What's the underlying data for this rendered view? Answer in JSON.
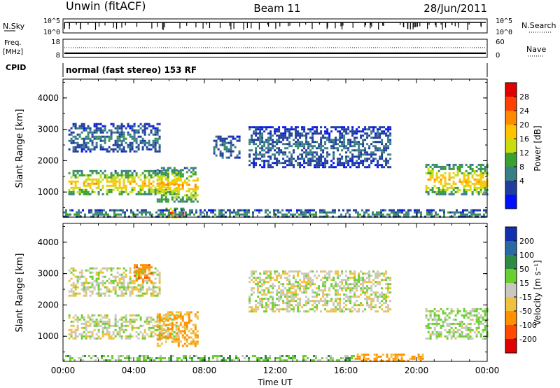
{
  "header": {
    "station": "Unwin (fitACF)",
    "beam": "Beam 11",
    "date": "28/Jun/2011"
  },
  "noise_panel": {
    "left_label": "N.Sky",
    "right_label": "N.Search",
    "left_ticks": [
      "10^5",
      "10^0"
    ],
    "right_ticks": [
      "10^5",
      "10^0"
    ]
  },
  "freq_panel": {
    "left_label_1": "Freq.",
    "left_label_2": "[MHz]",
    "right_label": "Nave",
    "left_ticks": [
      "18",
      "8"
    ],
    "right_ticks": [
      "60",
      "0"
    ]
  },
  "cpid": {
    "label": "CPID",
    "text": "normal (fast stereo) 153 RF"
  },
  "chart_data": [
    {
      "type": "heatmap",
      "title": "",
      "xlabel": "",
      "ylabel": "Slant Range [km]",
      "xlim": [
        0,
        24
      ],
      "ylim": [
        200,
        4600
      ],
      "y_ticks": [
        "1000",
        "2000",
        "3000",
        "4000"
      ],
      "colorbar": {
        "label": "Power [dB]",
        "ticks": [
          "28",
          "24",
          "20",
          "16",
          "12",
          "8",
          "4"
        ],
        "colors": [
          "#e00000",
          "#ff4000",
          "#ff8a00",
          "#ffc400",
          "#c8dc10",
          "#3aa030",
          "#3a7e86",
          "#203c9c",
          "#0010ff"
        ]
      },
      "regions": [
        {
          "t_start": 0.3,
          "t_end": 6.5,
          "range_start": 900,
          "range_end": 1700,
          "level": 18
        },
        {
          "t_start": 0.3,
          "t_end": 5.5,
          "range_start": 2300,
          "range_end": 3200,
          "level": 7
        },
        {
          "t_start": 5.3,
          "t_end": 7.6,
          "range_start": 700,
          "range_end": 1800,
          "level": 18
        },
        {
          "t_start": 5.8,
          "t_end": 6.8,
          "range_start": 200,
          "range_end": 500,
          "level": 26
        },
        {
          "t_start": 8.5,
          "t_end": 10.0,
          "range_start": 2100,
          "range_end": 2800,
          "level": 7
        },
        {
          "t_start": 10.5,
          "t_end": 18.5,
          "range_start": 1800,
          "range_end": 3100,
          "level": 6
        },
        {
          "t_start": 20.5,
          "t_end": 24.0,
          "range_start": 900,
          "range_end": 1900,
          "level": 18
        },
        {
          "t_start": 0.0,
          "t_end": 24.0,
          "range_start": 200,
          "range_end": 450,
          "level": 9
        }
      ]
    },
    {
      "type": "heatmap",
      "title": "",
      "xlabel": "Time UT",
      "ylabel": "Slant Range [km]",
      "xlim": [
        0,
        24
      ],
      "ylim": [
        200,
        4600
      ],
      "x_ticks": [
        "00:00",
        "04:00",
        "08:00",
        "12:00",
        "16:00",
        "20:00",
        "00:00"
      ],
      "y_ticks": [
        "1000",
        "2000",
        "3000",
        "4000"
      ],
      "colorbar": {
        "label": "Velocity [m s⁻¹]",
        "ticks": [
          "200",
          "100",
          "50",
          "15",
          "-15",
          "-50",
          "-100",
          "-200"
        ],
        "colors": [
          "#1030b0",
          "#2a6aa0",
          "#2e8a46",
          "#6ccf30",
          "#c8c8c0",
          "#f0c040",
          "#ff9000",
          "#ff4a00",
          "#e00000"
        ]
      },
      "regions": [
        {
          "t_start": 0.3,
          "t_end": 6.5,
          "range_start": 900,
          "range_end": 1700,
          "velocity": 0
        },
        {
          "t_start": 0.3,
          "t_end": 5.5,
          "range_start": 2300,
          "range_end": 3200,
          "velocity": 0
        },
        {
          "t_start": 4.0,
          "t_end": 5.0,
          "range_start": 2700,
          "range_end": 3300,
          "velocity": -60
        },
        {
          "t_start": 5.3,
          "t_end": 7.6,
          "range_start": 700,
          "range_end": 1800,
          "velocity": -35
        },
        {
          "t_start": 10.5,
          "t_end": 18.5,
          "range_start": 1800,
          "range_end": 3100,
          "velocity": 0
        },
        {
          "t_start": 20.5,
          "t_end": 24.0,
          "range_start": 900,
          "range_end": 1900,
          "velocity": 10
        },
        {
          "t_start": 16.5,
          "t_end": 20.5,
          "range_start": 200,
          "range_end": 450,
          "velocity": -40
        },
        {
          "t_start": 0.0,
          "t_end": 16.5,
          "range_start": 200,
          "range_end": 400,
          "velocity": 20
        }
      ]
    }
  ]
}
